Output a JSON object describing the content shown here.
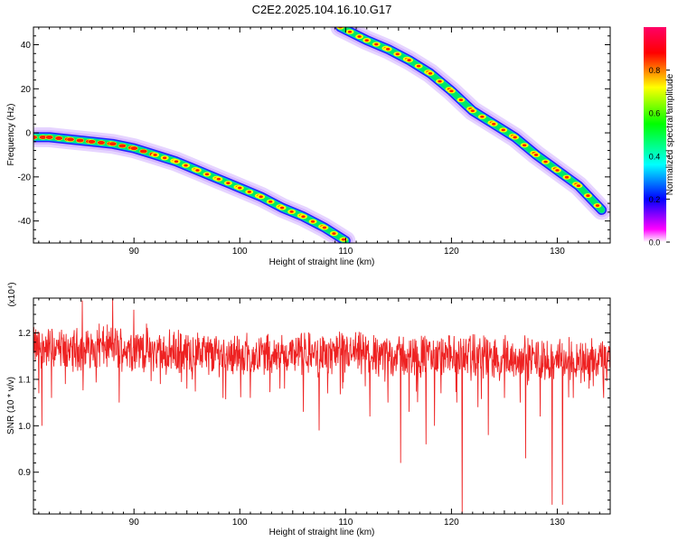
{
  "title": "C2E2.2025.104.16.10.G17",
  "chart_data": [
    {
      "type": "heatmap",
      "xlabel": "Height of straight line (km)",
      "ylabel": "Frequency (Hz)",
      "xlim": [
        80.5,
        135
      ],
      "ylim": [
        -50,
        48
      ],
      "x_ticks": [
        90,
        100,
        110,
        120,
        130
      ],
      "y_ticks": [
        -40,
        -20,
        0,
        20,
        40
      ],
      "tracks": [
        {
          "name": "",
          "x": [
            80.5,
            82,
            84,
            86,
            88,
            90,
            92,
            94,
            96,
            98,
            100,
            102,
            104,
            106,
            108,
            110
          ],
          "y": [
            -2,
            -2,
            -3,
            -4,
            -5,
            -7,
            -10,
            -13,
            -17,
            -21,
            -25,
            -29,
            -34,
            -38,
            -43,
            -49
          ]
        },
        {
          "name": "",
          "x": [
            109.5,
            112,
            114,
            116,
            118,
            120,
            122,
            124,
            126,
            128,
            130,
            132,
            134.2
          ],
          "y": [
            48,
            42,
            38,
            33,
            27,
            19,
            10,
            4,
            -2,
            -10,
            -17,
            -24,
            -35
          ]
        }
      ],
      "colorbar": {
        "label": "Normalized spectral amplitude",
        "ticks": [
          "0.0",
          "0.2",
          "0.4",
          "0.6",
          "0.8"
        ],
        "range": [
          0,
          1
        ],
        "colors": [
          "#ffffff",
          "#ff00ff",
          "#0000ff",
          "#00ffff",
          "#00ff00",
          "#ffff00",
          "#ff0000",
          "#ff0066"
        ]
      },
      "colors": {
        "outer": "#c8a0ff",
        "edge": "#2020ff",
        "band": "#00e868",
        "core": "#ffff00",
        "peak": "#ff2000"
      }
    },
    {
      "type": "line",
      "xlabel": "Height of straight line (km)",
      "ylabel": "SNR (10 * v/v)",
      "multiplier": "(x10⁴)",
      "xlim": [
        80.5,
        135
      ],
      "ylim": [
        0.81,
        1.275
      ],
      "x_ticks": [
        90,
        100,
        110,
        120,
        130
      ],
      "y_ticks": [
        "0.9",
        "1.0",
        "1.1",
        "1.2"
      ],
      "y_tick_values": [
        0.9,
        1.0,
        1.1,
        1.2
      ],
      "mean": [
        [
          80.5,
          1.17
        ],
        [
          84,
          1.165
        ],
        [
          88,
          1.17
        ],
        [
          92,
          1.16
        ],
        [
          100,
          1.155
        ],
        [
          110,
          1.155
        ],
        [
          120,
          1.15
        ],
        [
          135,
          1.14
        ]
      ],
      "spikes": [
        {
          "x": 81.0,
          "y": 1.07
        },
        {
          "x": 81.3,
          "y": 1.0
        },
        {
          "x": 82.2,
          "y": 1.06
        },
        {
          "x": 83.5,
          "y": 1.09
        },
        {
          "x": 85.1,
          "y": 1.27
        },
        {
          "x": 86.7,
          "y": 1.22
        },
        {
          "x": 88.0,
          "y": 1.275
        },
        {
          "x": 88.6,
          "y": 1.05
        },
        {
          "x": 90.0,
          "y": 1.25
        },
        {
          "x": 91.2,
          "y": 1.22
        },
        {
          "x": 92.5,
          "y": 1.09
        },
        {
          "x": 95.0,
          "y": 1.08
        },
        {
          "x": 98.4,
          "y": 1.06
        },
        {
          "x": 101.0,
          "y": 1.06
        },
        {
          "x": 103.8,
          "y": 1.08
        },
        {
          "x": 106.0,
          "y": 1.03
        },
        {
          "x": 107.5,
          "y": 0.99
        },
        {
          "x": 109.7,
          "y": 1.08
        },
        {
          "x": 112.3,
          "y": 1.02
        },
        {
          "x": 114.0,
          "y": 1.05
        },
        {
          "x": 115.2,
          "y": 0.92
        },
        {
          "x": 116.0,
          "y": 1.03
        },
        {
          "x": 117.6,
          "y": 0.96
        },
        {
          "x": 118.4,
          "y": 1.0
        },
        {
          "x": 119.0,
          "y": 1.07
        },
        {
          "x": 120.5,
          "y": 1.05
        },
        {
          "x": 121.0,
          "y": 0.81
        },
        {
          "x": 122.5,
          "y": 1.04
        },
        {
          "x": 123.5,
          "y": 0.98
        },
        {
          "x": 125.0,
          "y": 1.06
        },
        {
          "x": 126.5,
          "y": 1.05
        },
        {
          "x": 127.0,
          "y": 0.93
        },
        {
          "x": 128.4,
          "y": 1.02
        },
        {
          "x": 129.5,
          "y": 0.83
        },
        {
          "x": 130.5,
          "y": 0.83
        },
        {
          "x": 131.5,
          "y": 1.06
        },
        {
          "x": 133.0,
          "y": 1.08
        },
        {
          "x": 134.4,
          "y": 1.06
        }
      ],
      "color": "#ee2222"
    }
  ]
}
